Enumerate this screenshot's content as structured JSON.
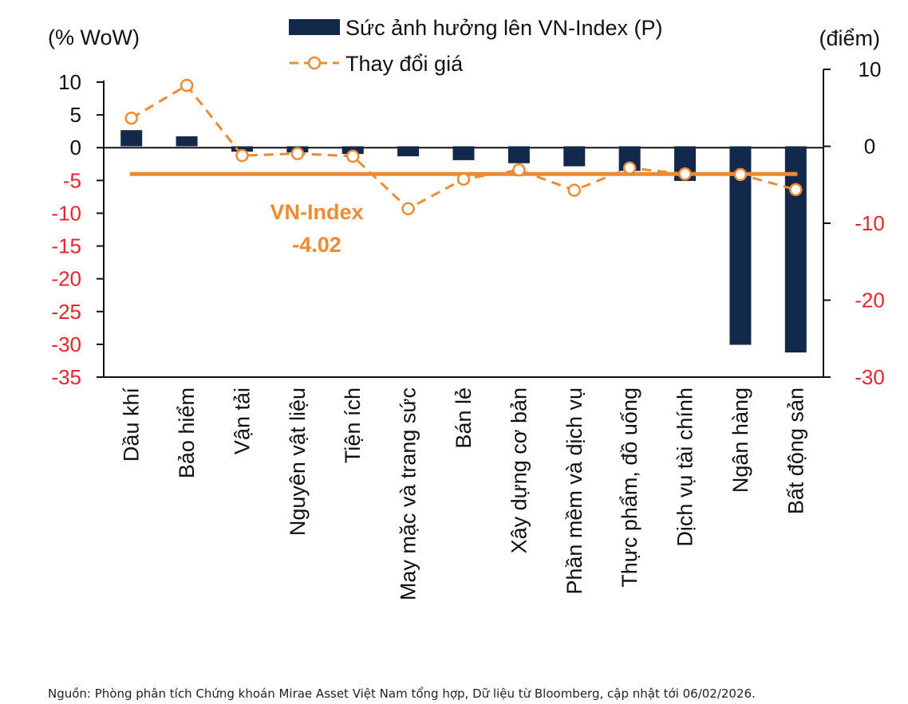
{
  "colors": {
    "bar": "#13294b",
    "line": "#ed8b34",
    "negative_tick": "#e8242c",
    "text": "#111111"
  },
  "chart_data": {
    "type": "bar",
    "left_axis_label": "(% WoW)",
    "right_axis_label": "(điểm)",
    "categories": [
      "Dầu khí",
      "Bảo hiểm",
      "Vận tải",
      "Nguyên vật liệu",
      "Tiện ích",
      "May mặc và trang sức",
      "Bán lẻ",
      "Xây dựng cơ bản",
      "Phần mềm và dịch vụ",
      "Thực phẩm, đồ uống",
      "Dịch vụ tài chính",
      "Ngân hàng",
      "Bất động sản"
    ],
    "left_ylim": [
      -35,
      10
    ],
    "left_ticks": [
      "10",
      "5",
      "0",
      "-5",
      "-10",
      "-15",
      "-20",
      "-25",
      "-30",
      "-35"
    ],
    "right_ylim": [
      -30,
      10
    ],
    "right_ticks": [
      "10",
      "0",
      "-10",
      "-20",
      "-30"
    ],
    "series": [
      {
        "name": "Sức ảnh hưởng lên VN-Index (P)",
        "type": "bar",
        "axis": "right",
        "values": [
          2.1,
          1.3,
          -0.7,
          -0.8,
          -1.0,
          -1.3,
          -1.8,
          -2.2,
          -2.6,
          -3.2,
          -4.5,
          -25.8,
          -26.8
        ]
      },
      {
        "name": "Thay đổi giá",
        "type": "line",
        "axis": "left",
        "values": [
          4.5,
          9.5,
          -1.2,
          -0.9,
          -1.3,
          -9.3,
          -4.8,
          -3.4,
          -6.5,
          -3.1,
          -4.0,
          -4.1,
          -6.4
        ]
      }
    ],
    "reference_line": {
      "label": "VN-Index",
      "value_label": "-4.02",
      "value": -4.02,
      "axis": "left"
    },
    "legend_position": "top",
    "grid": false
  },
  "source_note": "Nguồn: Phòng phân tích Chứng khoán Mirae Asset Việt Nam tổng hợp, Dữ liệu từ Bloomberg, cập nhật tới 06/02/2026."
}
